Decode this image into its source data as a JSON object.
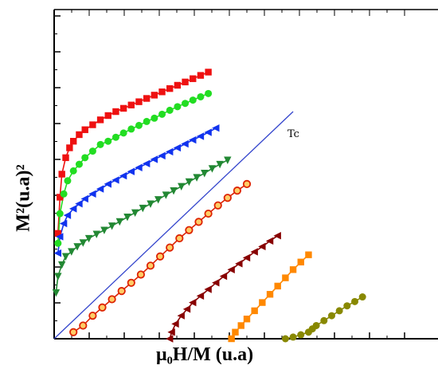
{
  "chart_data": {
    "type": "scatter",
    "xlabel": "μ₀H/M (u.a)",
    "ylabel": "M²(u.a)²",
    "xlim": [
      0,
      1
    ],
    "ylim": [
      0,
      1
    ],
    "grid": false,
    "annotation": "Tc",
    "tc_line": {
      "x": [
        0.0,
        0.62
      ],
      "y": [
        0.0,
        0.69
      ]
    },
    "series": [
      {
        "color": "#ee1111",
        "marker": "square",
        "x": [
          0.01,
          0.015,
          0.02,
          0.03,
          0.04,
          0.05,
          0.065,
          0.08,
          0.1,
          0.12,
          0.14,
          0.16,
          0.18,
          0.2,
          0.22,
          0.24,
          0.26,
          0.28,
          0.3,
          0.32,
          0.34,
          0.36,
          0.38,
          0.4
        ],
        "y": [
          0.32,
          0.43,
          0.5,
          0.55,
          0.58,
          0.6,
          0.62,
          0.635,
          0.65,
          0.665,
          0.678,
          0.69,
          0.7,
          0.71,
          0.72,
          0.73,
          0.74,
          0.75,
          0.76,
          0.77,
          0.78,
          0.79,
          0.8,
          0.81
        ]
      },
      {
        "color": "#22dd22",
        "marker": "circle",
        "x": [
          0.01,
          0.015,
          0.025,
          0.035,
          0.05,
          0.065,
          0.08,
          0.1,
          0.12,
          0.14,
          0.16,
          0.18,
          0.2,
          0.22,
          0.24,
          0.26,
          0.28,
          0.3,
          0.32,
          0.34,
          0.36,
          0.38,
          0.4
        ],
        "y": [
          0.29,
          0.38,
          0.44,
          0.48,
          0.51,
          0.53,
          0.55,
          0.57,
          0.59,
          0.6,
          0.612,
          0.625,
          0.637,
          0.648,
          0.66,
          0.67,
          0.682,
          0.694,
          0.705,
          0.715,
          0.725,
          0.735,
          0.745
        ]
      },
      {
        "color": "#1133ee",
        "marker": "triangle-left",
        "x": [
          0.01,
          0.015,
          0.025,
          0.035,
          0.05,
          0.065,
          0.08,
          0.1,
          0.12,
          0.14,
          0.16,
          0.18,
          0.2,
          0.22,
          0.24,
          0.26,
          0.28,
          0.3,
          0.32,
          0.34,
          0.36,
          0.38,
          0.4,
          0.42
        ],
        "y": [
          0.26,
          0.31,
          0.35,
          0.375,
          0.395,
          0.41,
          0.425,
          0.44,
          0.455,
          0.47,
          0.482,
          0.495,
          0.508,
          0.52,
          0.532,
          0.545,
          0.556,
          0.568,
          0.58,
          0.592,
          0.604,
          0.615,
          0.627,
          0.64
        ]
      },
      {
        "color": "#228833",
        "marker": "triangle-down",
        "x": [
          0.005,
          0.01,
          0.02,
          0.03,
          0.045,
          0.06,
          0.075,
          0.09,
          0.11,
          0.13,
          0.15,
          0.17,
          0.19,
          0.21,
          0.23,
          0.25,
          0.27,
          0.29,
          0.31,
          0.33,
          0.35,
          0.37,
          0.39,
          0.41,
          0.43,
          0.45
        ],
        "y": [
          0.14,
          0.19,
          0.225,
          0.25,
          0.265,
          0.28,
          0.292,
          0.305,
          0.318,
          0.33,
          0.343,
          0.356,
          0.37,
          0.383,
          0.397,
          0.41,
          0.423,
          0.437,
          0.45,
          0.463,
          0.477,
          0.49,
          0.503,
          0.517,
          0.53,
          0.543
        ]
      },
      {
        "color": "#dd2200",
        "marker": "circle-open",
        "x": [
          0.05,
          0.075,
          0.1,
          0.125,
          0.15,
          0.175,
          0.2,
          0.225,
          0.25,
          0.275,
          0.3,
          0.325,
          0.35,
          0.375,
          0.4,
          0.425,
          0.45,
          0.475,
          0.5
        ],
        "y": [
          0.02,
          0.04,
          0.07,
          0.095,
          0.12,
          0.145,
          0.17,
          0.195,
          0.222,
          0.25,
          0.277,
          0.305,
          0.33,
          0.355,
          0.38,
          0.405,
          0.428,
          0.45,
          0.47
        ]
      },
      {
        "color": "#880000",
        "marker": "triangle-left",
        "x": [
          0.3,
          0.305,
          0.315,
          0.33,
          0.345,
          0.36,
          0.38,
          0.4,
          0.42,
          0.44,
          0.46,
          0.48,
          0.5,
          0.52,
          0.54,
          0.56,
          0.58
        ],
        "y": [
          0.0,
          0.02,
          0.045,
          0.07,
          0.09,
          0.11,
          0.13,
          0.15,
          0.17,
          0.19,
          0.21,
          0.228,
          0.246,
          0.264,
          0.28,
          0.297,
          0.313
        ]
      },
      {
        "color": "#ff8800",
        "marker": "square",
        "x": [
          0.46,
          0.47,
          0.485,
          0.5,
          0.52,
          0.54,
          0.56,
          0.58,
          0.6,
          0.62,
          0.64,
          0.66
        ],
        "y": [
          0.0,
          0.02,
          0.04,
          0.06,
          0.085,
          0.11,
          0.135,
          0.16,
          0.185,
          0.21,
          0.233,
          0.255
        ]
      },
      {
        "color": "#888800",
        "marker": "circle",
        "x": [
          0.6,
          0.62,
          0.64,
          0.66,
          0.67,
          0.68,
          0.7,
          0.72,
          0.74,
          0.76,
          0.78,
          0.8
        ],
        "y": [
          0.0,
          0.005,
          0.012,
          0.02,
          0.03,
          0.04,
          0.055,
          0.07,
          0.085,
          0.1,
          0.113,
          0.127
        ]
      }
    ]
  }
}
